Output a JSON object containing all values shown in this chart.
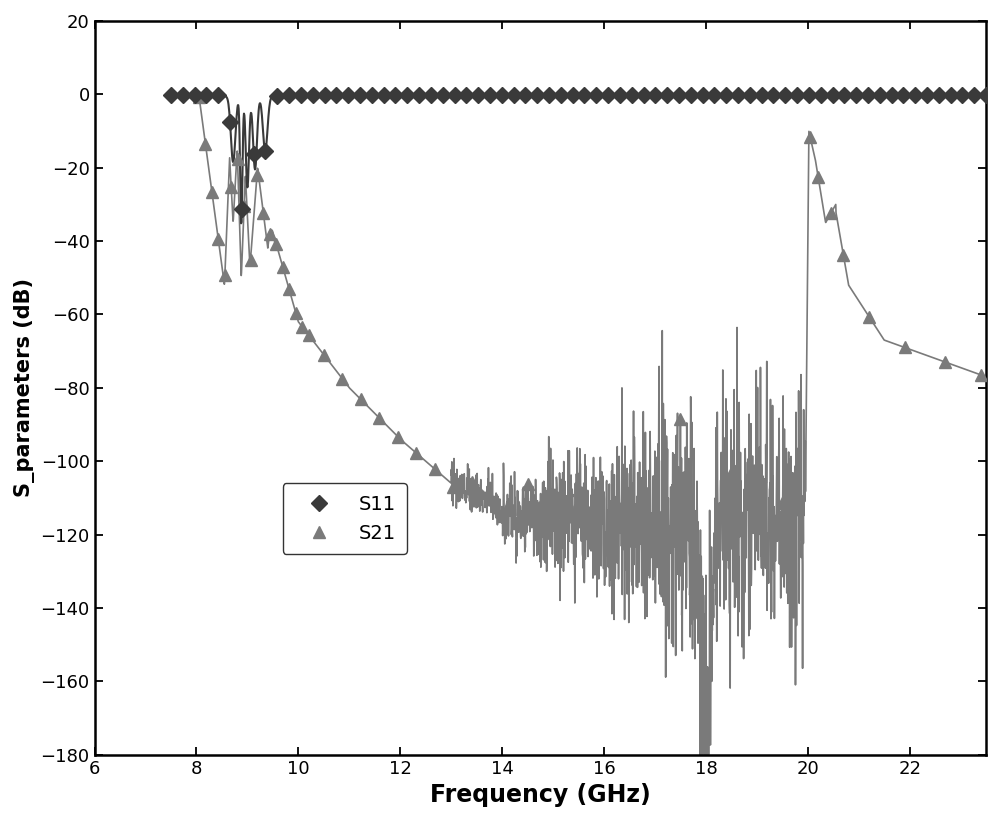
{
  "title": "",
  "xlabel": "Frequency (GHz)",
  "ylabel": "S_parameters (dB)",
  "xlim": [
    6,
    23.5
  ],
  "ylim": [
    -180,
    20
  ],
  "yticks": [
    20,
    0,
    -20,
    -40,
    -60,
    -80,
    -100,
    -120,
    -140,
    -160,
    -180
  ],
  "xticks": [
    6,
    8,
    10,
    12,
    14,
    16,
    18,
    20,
    22
  ],
  "legend_labels": [
    "S11",
    "S21"
  ],
  "s11_color": "#3a3a3a",
  "s21_color": "#7a7a7a",
  "background_color": "#ffffff",
  "figsize": [
    10.0,
    8.21
  ],
  "dpi": 100
}
